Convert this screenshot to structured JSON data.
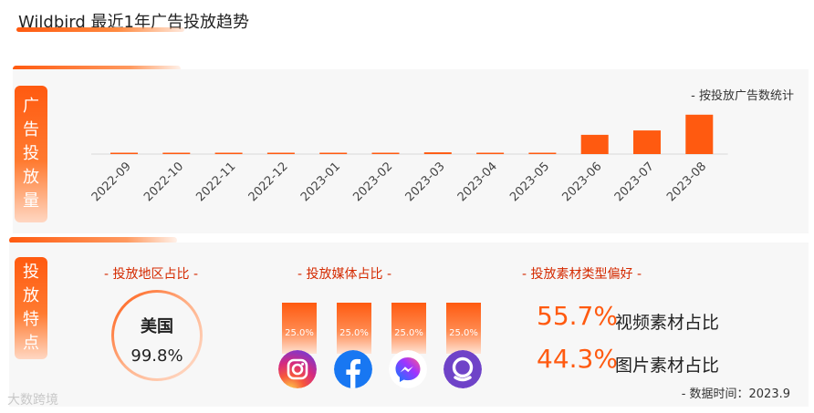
{
  "header": {
    "title": "Wildbird 最近1年广告投放趋势"
  },
  "trend_section": {
    "side_label": [
      "广",
      "告",
      "投",
      "放",
      "量"
    ],
    "note": "- 按投放广告数统计"
  },
  "features_section": {
    "side_label": [
      "投",
      "放",
      "特",
      "点"
    ],
    "region": {
      "title": "- 投放地区占比 -",
      "name": "美国",
      "pct": "99.8%"
    },
    "media": {
      "title": "- 投放媒体占比 -",
      "items": [
        {
          "icon": "instagram-icon",
          "pct": "25.0%"
        },
        {
          "icon": "facebook-icon",
          "pct": "25.0%"
        },
        {
          "icon": "messenger-icon",
          "pct": "25.0%"
        },
        {
          "icon": "audience-network-icon",
          "pct": "25.0%"
        }
      ]
    },
    "material": {
      "title": "- 投放素材类型偏好 -",
      "video_pct": "55.7%",
      "video_label": "视频素材占比",
      "image_pct": "44.3%",
      "image_label": "图片素材占比"
    },
    "data_time": "- 数据时间：2023.9"
  },
  "watermark": "大数跨境",
  "colors": {
    "accent": "#ff5a10",
    "title_red": "#d42a00"
  },
  "chart_data": {
    "type": "bar",
    "title": "",
    "categories": [
      "2022-09",
      "2022-10",
      "2022-11",
      "2022-12",
      "2023-01",
      "2023-02",
      "2023-03",
      "2023-04",
      "2023-05",
      "2023-06",
      "2023-07",
      "2023-08"
    ],
    "values": [
      1,
      1,
      1,
      1,
      1,
      1,
      2,
      1,
      1,
      22,
      27,
      45
    ],
    "xlabel": "",
    "ylabel": "",
    "ylim": [
      0,
      50
    ],
    "grid": false,
    "bar_color": "#ff5a10"
  }
}
